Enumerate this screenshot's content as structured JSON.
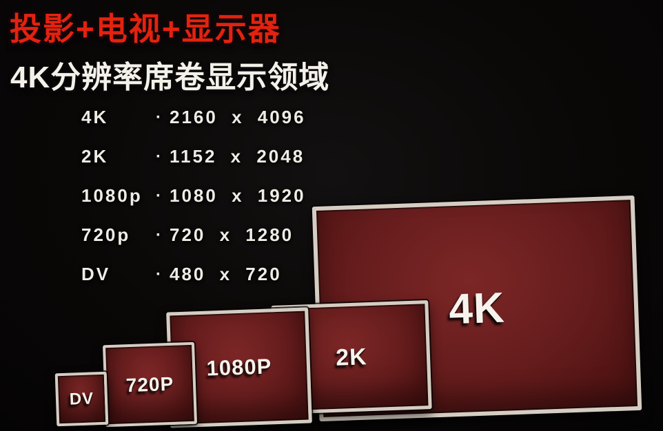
{
  "header": {
    "badge": "投影+电视+显示器",
    "title": "4K分辨率席卷显示领域"
  },
  "resolution_list": {
    "rows": [
      {
        "label": "4K",
        "separator": "·",
        "value": "2160 x 4096"
      },
      {
        "label": "2K",
        "separator": "·",
        "value": "1152 x 2048"
      },
      {
        "label": "1080p",
        "separator": "·",
        "value": "1080 x 1920"
      },
      {
        "label": "720p",
        "separator": "·",
        "value": "720 x 1280"
      },
      {
        "label": "DV",
        "separator": "·",
        "value": "480 x 720"
      }
    ]
  },
  "screens": [
    {
      "id": "dv",
      "label": "DV"
    },
    {
      "id": "720p",
      "label": "720P"
    },
    {
      "id": "1080p",
      "label": "1080P"
    },
    {
      "id": "2k",
      "label": "2K"
    },
    {
      "id": "4k",
      "label": "4K"
    }
  ],
  "colors": {
    "background": "#0a0707",
    "accent_red": "#e3220f",
    "screen_fill": "#671d1d",
    "screen_border": "#d5cdc2",
    "text_white": "#f4f1ea"
  }
}
